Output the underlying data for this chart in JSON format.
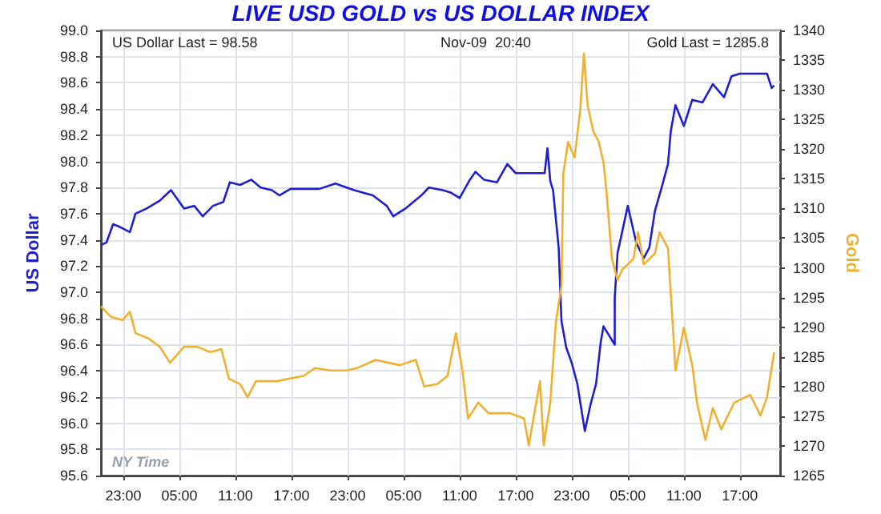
{
  "chart_data": {
    "type": "line",
    "title": "LIVE USD GOLD vs US DOLLAR INDEX",
    "ylabel": "US Dollar",
    "y2label": "Gold",
    "annotations": [
      "US Dollar Last = 98.58",
      "Nov-09  20:40",
      "Gold Last = 1285.8",
      "NY Time"
    ],
    "xlim": [
      "--11-06T20:36",
      "--11-09T21:18"
    ],
    "xticks": [
      {
        "value": "--11-06T23:00",
        "label": "23:00"
      },
      {
        "value": "--11-07T05:00",
        "label": "05:00"
      },
      {
        "value": "--11-07T11:00",
        "label": "11:00"
      },
      {
        "value": "--11-07T17:00",
        "label": "17:00"
      },
      {
        "value": "--11-07T23:00",
        "label": "23:00"
      },
      {
        "value": "--11-08T05:00",
        "label": "05:00"
      },
      {
        "value": "--11-08T11:00",
        "label": "11:00"
      },
      {
        "value": "--11-08T17:00",
        "label": "17:00"
      },
      {
        "value": "--11-08T23:00",
        "label": "23:00"
      },
      {
        "value": "--11-09T05:00",
        "label": "05:00"
      },
      {
        "value": "--11-09T11:00",
        "label": "11:00"
      },
      {
        "value": "--11-09T17:00",
        "label": "17:00"
      }
    ],
    "ylim": [
      95.6,
      99.0
    ],
    "yticks": [
      {
        "value": 95.6,
        "label": "95.6"
      },
      {
        "value": 95.8,
        "label": "95.8"
      },
      {
        "value": 96.0,
        "label": "96.0"
      },
      {
        "value": 96.2,
        "label": "96.2"
      },
      {
        "value": 96.4,
        "label": "96.4"
      },
      {
        "value": 96.6,
        "label": "96.6"
      },
      {
        "value": 96.8,
        "label": "96.8"
      },
      {
        "value": 97.0,
        "label": "97.0"
      },
      {
        "value": 97.2,
        "label": "97.2"
      },
      {
        "value": 97.4,
        "label": "97.4"
      },
      {
        "value": 97.6,
        "label": "97.6"
      },
      {
        "value": 97.8,
        "label": "97.8"
      },
      {
        "value": 98.0,
        "label": "98.0"
      },
      {
        "value": 98.2,
        "label": "98.2"
      },
      {
        "value": 98.4,
        "label": "98.4"
      },
      {
        "value": 98.6,
        "label": "98.6"
      },
      {
        "value": 98.8,
        "label": "98.8"
      },
      {
        "value": 99.0,
        "label": "99.0"
      }
    ],
    "y2lim": [
      1265,
      1340
    ],
    "y2ticks": [
      1265,
      1270,
      1275,
      1280,
      1285,
      1290,
      1295,
      1300,
      1305,
      1310,
      1315,
      1320,
      1325,
      1330,
      1335,
      1340
    ],
    "grid": true,
    "marker": "none",
    "line_style": "solid",
    "series": [
      {
        "color": "#1f1fd0",
        "x": [
          "--11-06T20:36",
          "--11-06T21:12",
          "--11-06T21:54",
          "--11-06T22:36",
          "--11-06T23:42",
          "--11-07T00:18",
          "--11-07T01:30",
          "--11-07T02:54",
          "--11-07T04:06",
          "--11-07T05:30",
          "--11-07T06:36",
          "--11-07T07:30",
          "--11-07T08:36",
          "--11-07T09:42",
          "--11-07T10:24",
          "--11-07T11:30",
          "--11-07T12:42",
          "--11-07T13:42",
          "--11-07T14:54",
          "--11-07T15:42",
          "--11-07T16:54",
          "--11-07T20:00",
          "--11-07T21:42",
          "--11-07T23:42",
          "--11-08T01:42",
          "--11-08T03:12",
          "--11-08T03:54",
          "--11-08T05:12",
          "--11-08T06:54",
          "--11-08T07:42",
          "--11-08T09:12",
          "--11-08T10:06",
          "--11-08T11:00",
          "--11-08T12:06",
          "--11-08T12:42",
          "--11-08T13:36",
          "--11-08T15:00",
          "--11-08T16:06",
          "--11-08T17:00",
          "--11-08T20:06",
          "--11-08T20:24",
          "--11-08T20:42",
          "--11-08T21:00",
          "--11-08T21:36",
          "--11-08T21:54",
          "--11-08T22:24",
          "--11-08T23:00",
          "--11-08T23:36",
          "--11-09T00:24",
          "--11-09T01:00",
          "--11-09T01:36",
          "--11-09T02:06",
          "--11-09T02:24",
          "--11-09T03:36",
          "--11-09T03:36",
          "--11-09T03:54",
          "--11-09T05:00",
          "--11-09T05:54",
          "--11-09T06:42",
          "--11-09T07:18",
          "--11-09T07:54",
          "--11-09T08:42",
          "--11-09T09:18",
          "--11-09T09:36",
          "--11-09T10:06",
          "--11-09T11:00",
          "--11-09T11:54",
          "--11-09T13:00",
          "--11-09T14:06",
          "--11-09T15:18",
          "--11-09T16:06",
          "--11-09T17:00",
          "--11-09T19:54",
          "--11-09T20:24",
          "--11-09T20:40"
        ],
        "values": [
          97.36,
          97.38,
          97.52,
          97.5,
          97.46,
          97.6,
          97.64,
          97.7,
          97.78,
          97.64,
          97.66,
          97.58,
          97.66,
          97.69,
          97.84,
          97.82,
          97.86,
          97.8,
          97.78,
          97.74,
          97.79,
          97.79,
          97.83,
          97.78,
          97.74,
          97.66,
          97.58,
          97.64,
          97.74,
          97.8,
          97.78,
          97.76,
          97.72,
          97.86,
          97.92,
          97.86,
          97.84,
          97.98,
          97.91,
          97.91,
          98.1,
          97.85,
          97.78,
          97.34,
          96.78,
          96.58,
          96.46,
          96.3,
          95.94,
          96.14,
          96.3,
          96.62,
          96.74,
          96.6,
          96.96,
          97.3,
          97.66,
          97.38,
          97.26,
          97.34,
          97.62,
          97.82,
          97.98,
          98.23,
          98.43,
          98.27,
          98.47,
          98.45,
          98.59,
          98.49,
          98.65,
          98.67,
          98.67,
          98.56,
          98.58
        ]
      },
      {
        "color": "#f0b030",
        "axis": "y2",
        "x": [
          "--11-06T20:36",
          "--11-06T21:42",
          "--11-06T22:54",
          "--11-06T23:42",
          "--11-07T00:18",
          "--11-07T01:42",
          "--11-07T02:54",
          "--11-07T04:00",
          "--11-07T05:30",
          "--11-07T06:54",
          "--11-07T08:18",
          "--11-07T09:30",
          "--11-07T10:18",
          "--11-07T11:30",
          "--11-07T12:18",
          "--11-07T13:12",
          "--11-07T14:00",
          "--11-07T15:30",
          "--11-07T16:36",
          "--11-07T18:18",
          "--11-07T19:30",
          "--11-07T21:12",
          "--11-07T22:54",
          "--11-08T00:00",
          "--11-08T02:00",
          "--11-08T04:36",
          "--11-08T06:18",
          "--11-08T07:12",
          "--11-08T08:36",
          "--11-08T09:42",
          "--11-08T10:36",
          "--11-08T11:18",
          "--11-08T11:54",
          "--11-08T13:00",
          "--11-08T14:06",
          "--11-08T15:18",
          "--11-08T16:24",
          "--11-08T17:54",
          "--11-08T18:24",
          "--11-08T19:36",
          "--11-08T20:00",
          "--11-08T20:42",
          "--11-08T21:18",
          "--11-08T21:54",
          "--11-08T22:06",
          "--11-08T22:36",
          "--11-08T23:18",
          "--11-08T23:54",
          "--11-09T00:18",
          "--11-09T00:42",
          "--11-09T01:18",
          "--11-09T01:54",
          "--11-09T02:24",
          "--11-09T02:42",
          "--11-09T03:18",
          "--11-09T03:54",
          "--11-09T04:24",
          "--11-09T05:36",
          "--11-09T06:06",
          "--11-09T06:42",
          "--11-09T07:54",
          "--11-09T08:24",
          "--11-09T09:00",
          "--11-09T09:18",
          "--11-09T09:54",
          "--11-09T10:06",
          "--11-09T11:00",
          "--11-09T11:54",
          "--11-09T12:24",
          "--11-09T13:18",
          "--11-09T14:06",
          "--11-09T15:00",
          "--11-09T16:24",
          "--11-09T18:06",
          "--11-09T19:12",
          "--11-09T19:54",
          "--11-09T20:40"
        ],
        "values": [
          1293.5,
          1291.7,
          1291.2,
          1292.6,
          1289.0,
          1288.1,
          1286.7,
          1284.0,
          1286.7,
          1286.7,
          1285.8,
          1286.3,
          1281.3,
          1280.4,
          1278.2,
          1280.9,
          1280.9,
          1280.9,
          1281.3,
          1281.8,
          1283.1,
          1282.7,
          1282.7,
          1283.1,
          1284.5,
          1283.6,
          1284.5,
          1280.0,
          1280.4,
          1281.8,
          1289.0,
          1282.7,
          1274.6,
          1277.3,
          1275.5,
          1275.5,
          1275.5,
          1274.6,
          1270.1,
          1280.9,
          1270.1,
          1277.3,
          1290.8,
          1297.0,
          1315.9,
          1321.2,
          1318.6,
          1326.5,
          1336.1,
          1327.4,
          1323.0,
          1321.2,
          1317.7,
          1313.2,
          1301.5,
          1297.9,
          1299.7,
          1301.5,
          1306.0,
          1300.6,
          1302.4,
          1306.0,
          1304.2,
          1303.3,
          1288.1,
          1282.7,
          1289.9,
          1283.6,
          1277.3,
          1271.0,
          1276.4,
          1272.8,
          1277.3,
          1278.6,
          1275.1,
          1278.2,
          1285.8
        ]
      }
    ]
  }
}
